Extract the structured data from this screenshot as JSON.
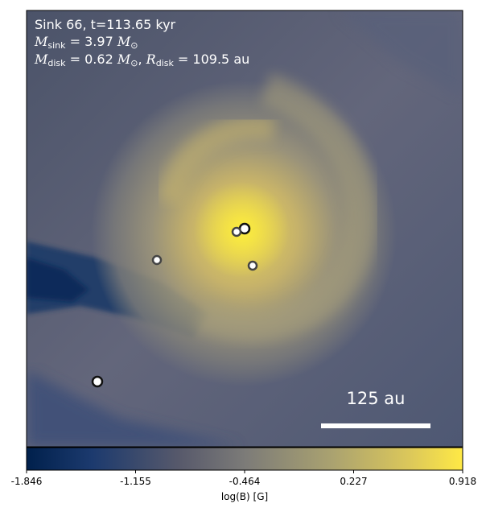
{
  "annotation": {
    "line1": "Sink 66, t=113.65 kyr",
    "msink_symbol": "M",
    "msink_sub": "sink",
    "msink_value": "3.97",
    "mdisk_symbol": "M",
    "mdisk_sub": "disk",
    "mdisk_value": "0.62",
    "rdisk_symbol": "R",
    "rdisk_sub": "disk",
    "rdisk_value": "109.5",
    "unit_msun": "M",
    "unit_msun_sub": "⊙",
    "unit_au": "au"
  },
  "scale_bar": {
    "label": "125 au"
  },
  "colorbar": {
    "label": "log(B) [G]",
    "ticks": [
      "-1.846",
      "-1.155",
      "-0.464",
      "0.227",
      "0.918"
    ],
    "range": [
      -1.846,
      0.918
    ],
    "colormap": [
      "#00204c",
      "#5a5d6d",
      "#7c7b78",
      "#b5a96e",
      "#ffe945"
    ]
  },
  "sinks": [
    {
      "name": "sink-central-a",
      "highlight": true
    },
    {
      "name": "sink-central-b",
      "highlight": false
    },
    {
      "name": "sink-right",
      "highlight": false
    },
    {
      "name": "sink-left",
      "highlight": false
    },
    {
      "name": "sink-lower-left",
      "highlight": true
    }
  ]
}
